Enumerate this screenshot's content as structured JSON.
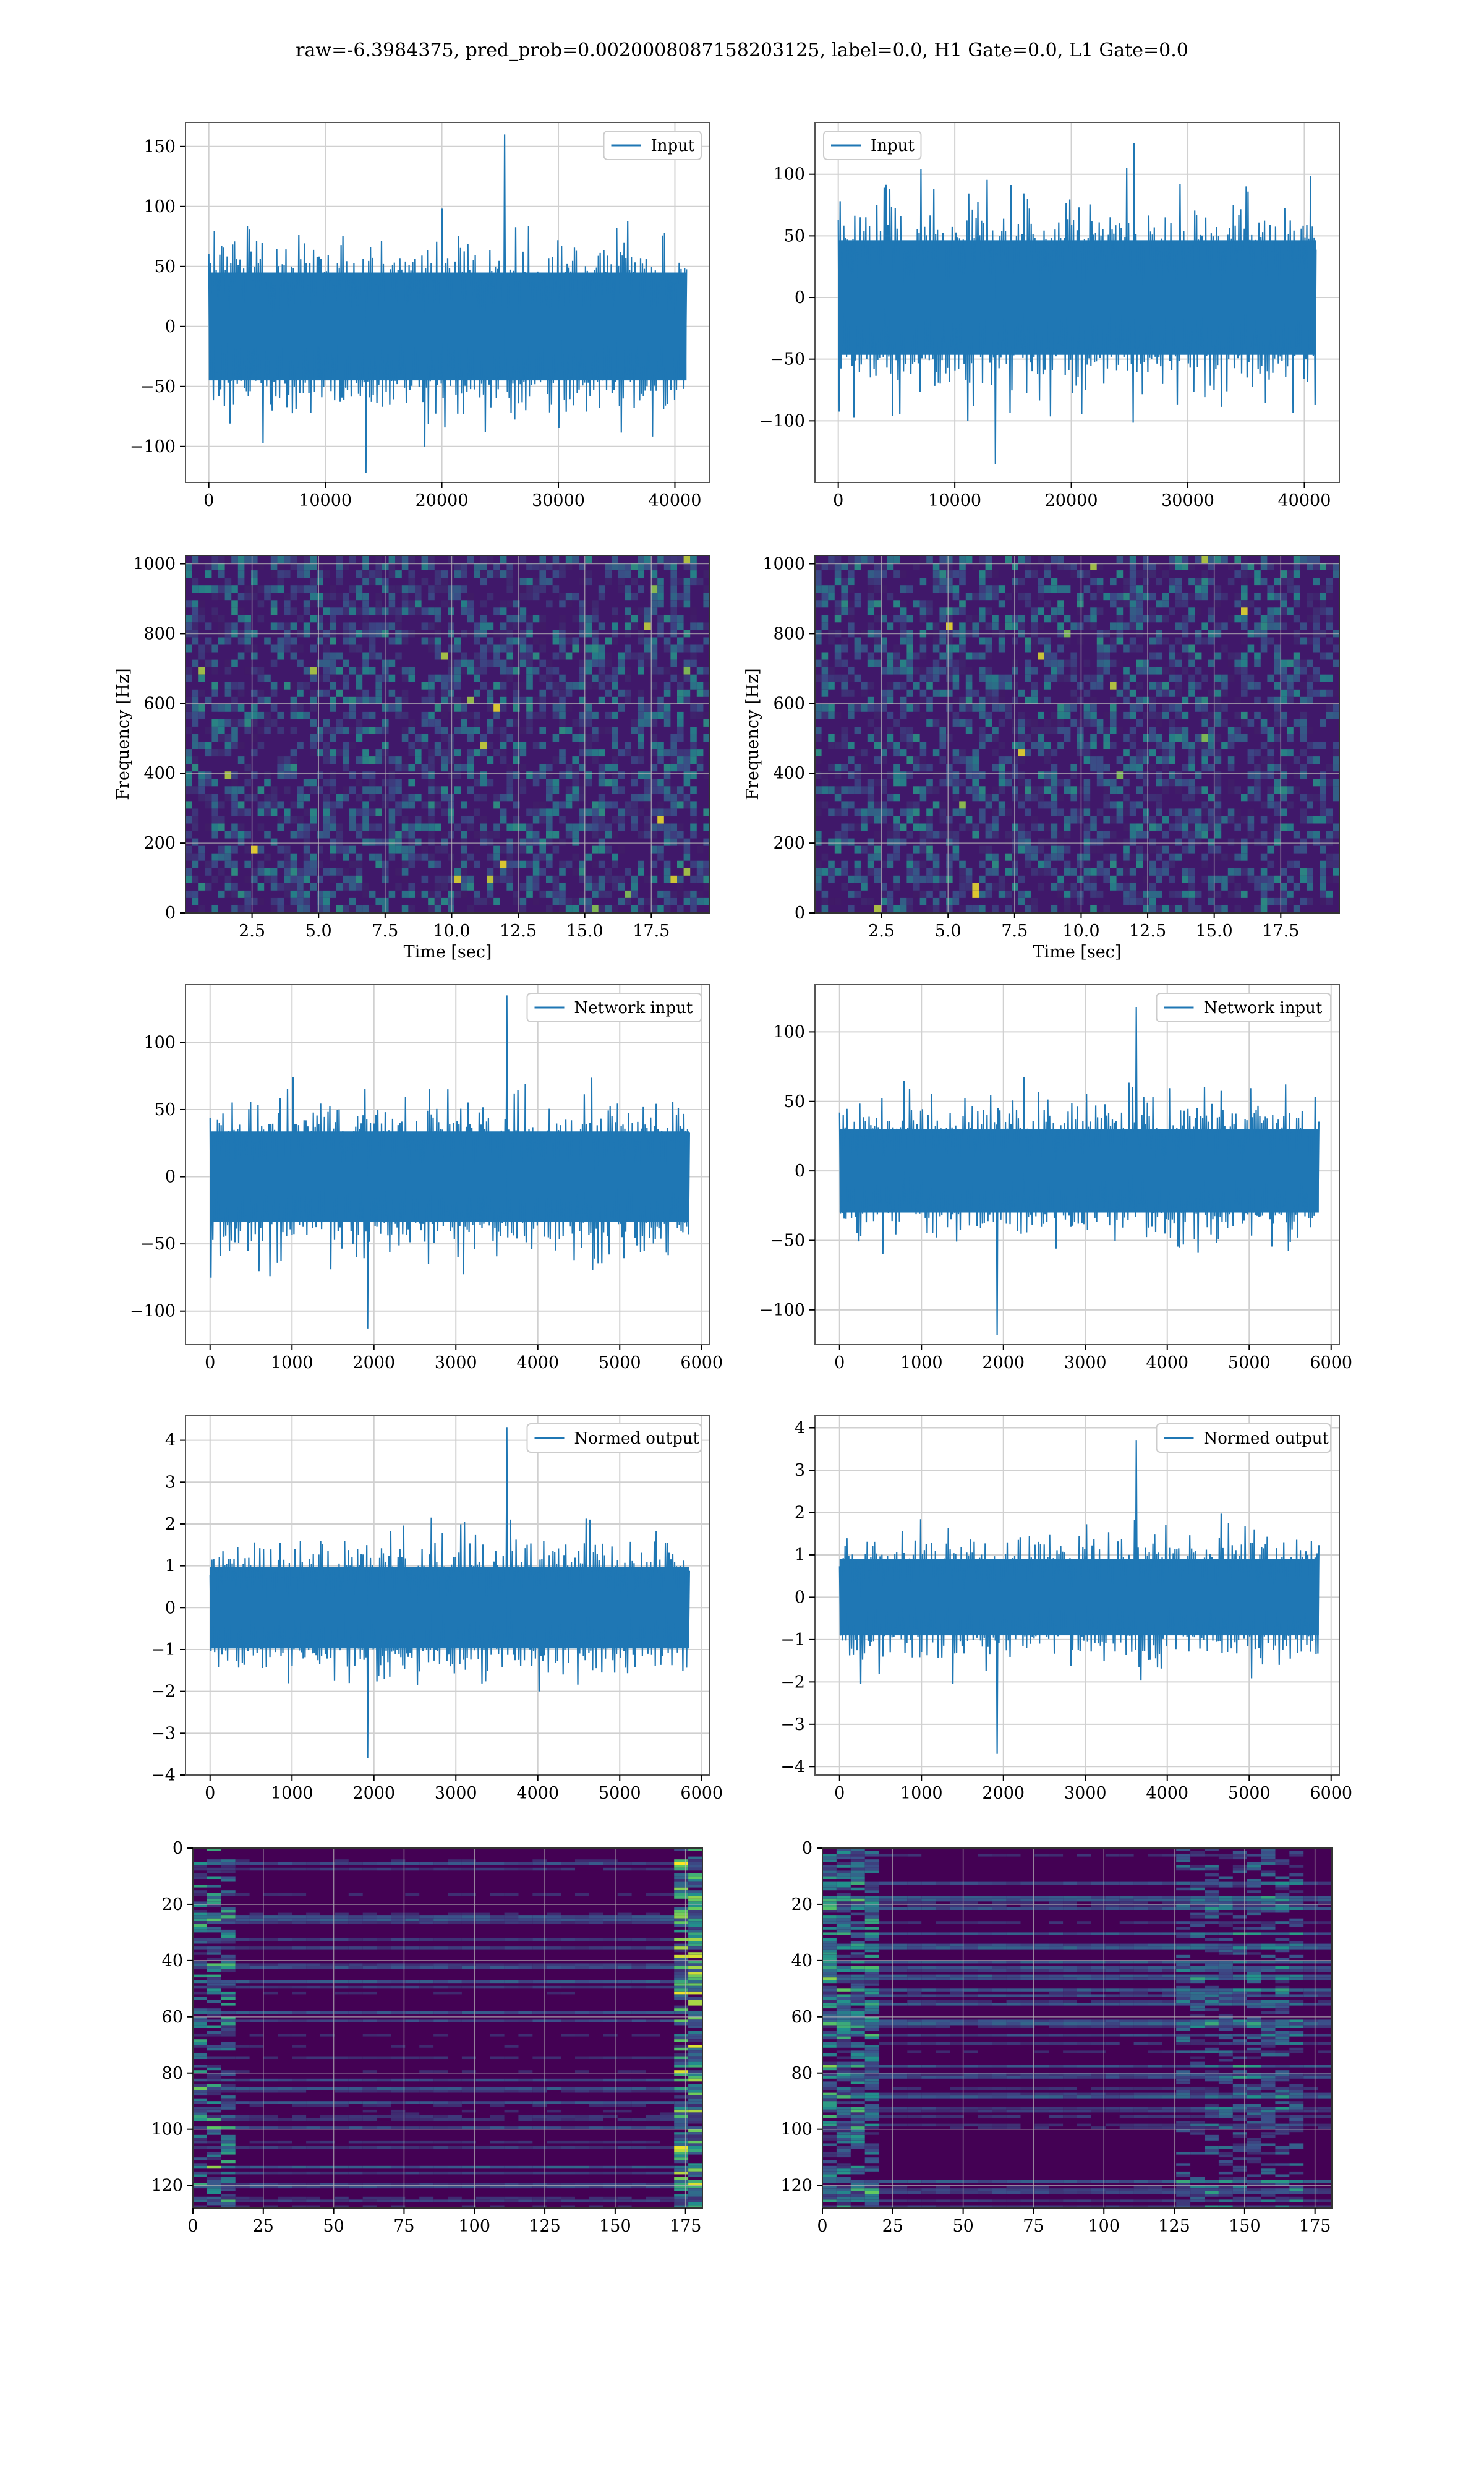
{
  "figure": {
    "title": "raw=-6.3984375, pred_prob=0.0020008087158203125, label=0.0, H1 Gate=0.0, L1 Gate=0.0"
  },
  "colors": {
    "line": "#1f77b4",
    "grid": "#d0d0d0",
    "spec_bg": "#3b1f62",
    "spec_low": "#46327e",
    "spec_mid": "#21918c",
    "spec_high": "#5ec962",
    "spec_peak": "#fde725"
  },
  "chart_data": [
    {
      "id": "input-left",
      "type": "line",
      "legend": [
        "Input"
      ],
      "legend_pos": "top-right",
      "xlim": [
        -2000,
        43000
      ],
      "ylim": [
        -130,
        170
      ],
      "xticks": [
        0,
        10000,
        20000,
        30000,
        40000
      ],
      "yticks": [
        -100,
        -50,
        0,
        50,
        100,
        150
      ],
      "xticklabels": [
        "0",
        "10000",
        "20000",
        "30000",
        "40000"
      ],
      "yticklabels": [
        "−100",
        "−50",
        "0",
        "50",
        "100",
        "150"
      ],
      "signal": {
        "x_range": [
          0,
          41000
        ],
        "amp": 60,
        "max": 160,
        "min": -122,
        "n": 520
      },
      "xlabel": "",
      "ylabel": ""
    },
    {
      "id": "input-right",
      "type": "line",
      "legend": [
        "Input"
      ],
      "legend_pos": "top-left",
      "xlim": [
        -2000,
        43000
      ],
      "ylim": [
        -150,
        142
      ],
      "xticks": [
        0,
        10000,
        20000,
        30000,
        40000
      ],
      "yticks": [
        -100,
        -50,
        0,
        50,
        100
      ],
      "xticklabels": [
        "0",
        "10000",
        "20000",
        "30000",
        "40000"
      ],
      "yticklabels": [
        "−100",
        "−50",
        "0",
        "50",
        "100"
      ],
      "signal": {
        "x_range": [
          0,
          41000
        ],
        "amp": 62,
        "max": 125,
        "min": -135,
        "n": 520
      },
      "xlabel": "",
      "ylabel": ""
    },
    {
      "id": "spectrogram-left",
      "type": "heatmap",
      "xlim": [
        0,
        19.7
      ],
      "ylim": [
        0,
        1024
      ],
      "xticks": [
        2.5,
        5.0,
        7.5,
        10.0,
        12.5,
        15.0,
        17.5
      ],
      "yticks": [
        0,
        200,
        400,
        600,
        800,
        1000
      ],
      "xticklabels": [
        "2.5",
        "5.0",
        "7.5",
        "10.0",
        "12.5",
        "15.0",
        "17.5"
      ],
      "yticklabels": [
        "0",
        "200",
        "400",
        "600",
        "800",
        "1000"
      ],
      "xlabel": "Time [sec]",
      "ylabel": "Frequency [Hz]"
    },
    {
      "id": "spectrogram-right",
      "type": "heatmap",
      "xlim": [
        0,
        19.7
      ],
      "ylim": [
        0,
        1024
      ],
      "xticks": [
        2.5,
        5.0,
        7.5,
        10.0,
        12.5,
        15.0,
        17.5
      ],
      "yticks": [
        0,
        200,
        400,
        600,
        800,
        1000
      ],
      "xticklabels": [
        "2.5",
        "5.0",
        "7.5",
        "10.0",
        "12.5",
        "15.0",
        "17.5"
      ],
      "yticklabels": [
        "0",
        "200",
        "400",
        "600",
        "800",
        "1000"
      ],
      "xlabel": "Time [sec]",
      "ylabel": "Frequency [Hz]"
    },
    {
      "id": "network-input-left",
      "type": "line",
      "legend": [
        "Network input"
      ],
      "legend_pos": "top-right",
      "xlim": [
        -300,
        6100
      ],
      "ylim": [
        -125,
        143
      ],
      "xticks": [
        0,
        1000,
        2000,
        3000,
        4000,
        5000,
        6000
      ],
      "yticks": [
        -100,
        -50,
        0,
        50,
        100
      ],
      "xticklabels": [
        "0",
        "1000",
        "2000",
        "3000",
        "4000",
        "5000",
        "6000"
      ],
      "yticklabels": [
        "−100",
        "−50",
        "0",
        "50",
        "100"
      ],
      "signal": {
        "x_range": [
          0,
          5850
        ],
        "amp": 45,
        "max": 135,
        "min": -113,
        "n": 520
      },
      "xlabel": "",
      "ylabel": ""
    },
    {
      "id": "network-input-right",
      "type": "line",
      "legend": [
        "Network input"
      ],
      "legend_pos": "top-right",
      "xlim": [
        -300,
        6100
      ],
      "ylim": [
        -125,
        134
      ],
      "xticks": [
        0,
        1000,
        2000,
        3000,
        4000,
        5000,
        6000
      ],
      "yticks": [
        -100,
        -50,
        0,
        50,
        100
      ],
      "xticklabels": [
        "0",
        "1000",
        "2000",
        "3000",
        "4000",
        "5000",
        "6000"
      ],
      "yticklabels": [
        "−100",
        "−50",
        "0",
        "50",
        "100"
      ],
      "signal": {
        "x_range": [
          0,
          5850
        ],
        "amp": 40,
        "max": 118,
        "min": -118,
        "n": 520
      },
      "xlabel": "",
      "ylabel": ""
    },
    {
      "id": "normed-output-left",
      "type": "line",
      "legend": [
        "Normed output"
      ],
      "legend_pos": "top-right",
      "xlim": [
        -300,
        6100
      ],
      "ylim": [
        -4.0,
        4.6
      ],
      "xticks": [
        0,
        1000,
        2000,
        3000,
        4000,
        5000,
        6000
      ],
      "yticks": [
        -4,
        -3,
        -2,
        -1,
        0,
        1,
        2,
        3,
        4
      ],
      "xticklabels": [
        "0",
        "1000",
        "2000",
        "3000",
        "4000",
        "5000",
        "6000"
      ],
      "yticklabels": [
        "−4",
        "−3",
        "−2",
        "−1",
        "0",
        "1",
        "2",
        "3",
        "4"
      ],
      "signal": {
        "x_range": [
          0,
          5850
        ],
        "amp": 1.3,
        "max": 4.3,
        "min": -3.6,
        "n": 520
      },
      "xlabel": "",
      "ylabel": ""
    },
    {
      "id": "normed-output-right",
      "type": "line",
      "legend": [
        "Normed output"
      ],
      "legend_pos": "top-right",
      "xlim": [
        -300,
        6100
      ],
      "ylim": [
        -4.2,
        4.3
      ],
      "xticks": [
        0,
        1000,
        2000,
        3000,
        4000,
        5000,
        6000
      ],
      "yticks": [
        -4,
        -3,
        -2,
        -1,
        0,
        1,
        2,
        3,
        4
      ],
      "xticklabels": [
        "0",
        "1000",
        "2000",
        "3000",
        "4000",
        "5000",
        "6000"
      ],
      "yticklabels": [
        "−4",
        "−3",
        "−2",
        "−1",
        "0",
        "1",
        "2",
        "3",
        "4"
      ],
      "signal": {
        "x_range": [
          0,
          5850
        ],
        "amp": 1.2,
        "max": 3.7,
        "min": -3.7,
        "n": 520
      },
      "xlabel": "",
      "ylabel": ""
    },
    {
      "id": "feature-map-left",
      "type": "heatmap",
      "xlim": [
        0,
        181
      ],
      "ylim": [
        128,
        0
      ],
      "xticks": [
        0,
        25,
        50,
        75,
        100,
        125,
        150,
        175
      ],
      "yticks": [
        0,
        20,
        40,
        60,
        80,
        100,
        120
      ],
      "xticklabels": [
        "0",
        "25",
        "50",
        "75",
        "100",
        "125",
        "150",
        "175"
      ],
      "yticklabels": [
        "0",
        "20",
        "40",
        "60",
        "80",
        "100",
        "120"
      ],
      "xlabel": "",
      "ylabel": ""
    },
    {
      "id": "feature-map-right",
      "type": "heatmap",
      "xlim": [
        0,
        181
      ],
      "ylim": [
        128,
        0
      ],
      "xticks": [
        0,
        25,
        50,
        75,
        100,
        125,
        150,
        175
      ],
      "yticks": [
        0,
        20,
        40,
        60,
        80,
        100,
        120
      ],
      "xticklabels": [
        "0",
        "25",
        "50",
        "75",
        "100",
        "125",
        "150",
        "175"
      ],
      "yticklabels": [
        "0",
        "20",
        "40",
        "60",
        "80",
        "100",
        "120"
      ],
      "xlabel": "",
      "ylabel": ""
    }
  ]
}
